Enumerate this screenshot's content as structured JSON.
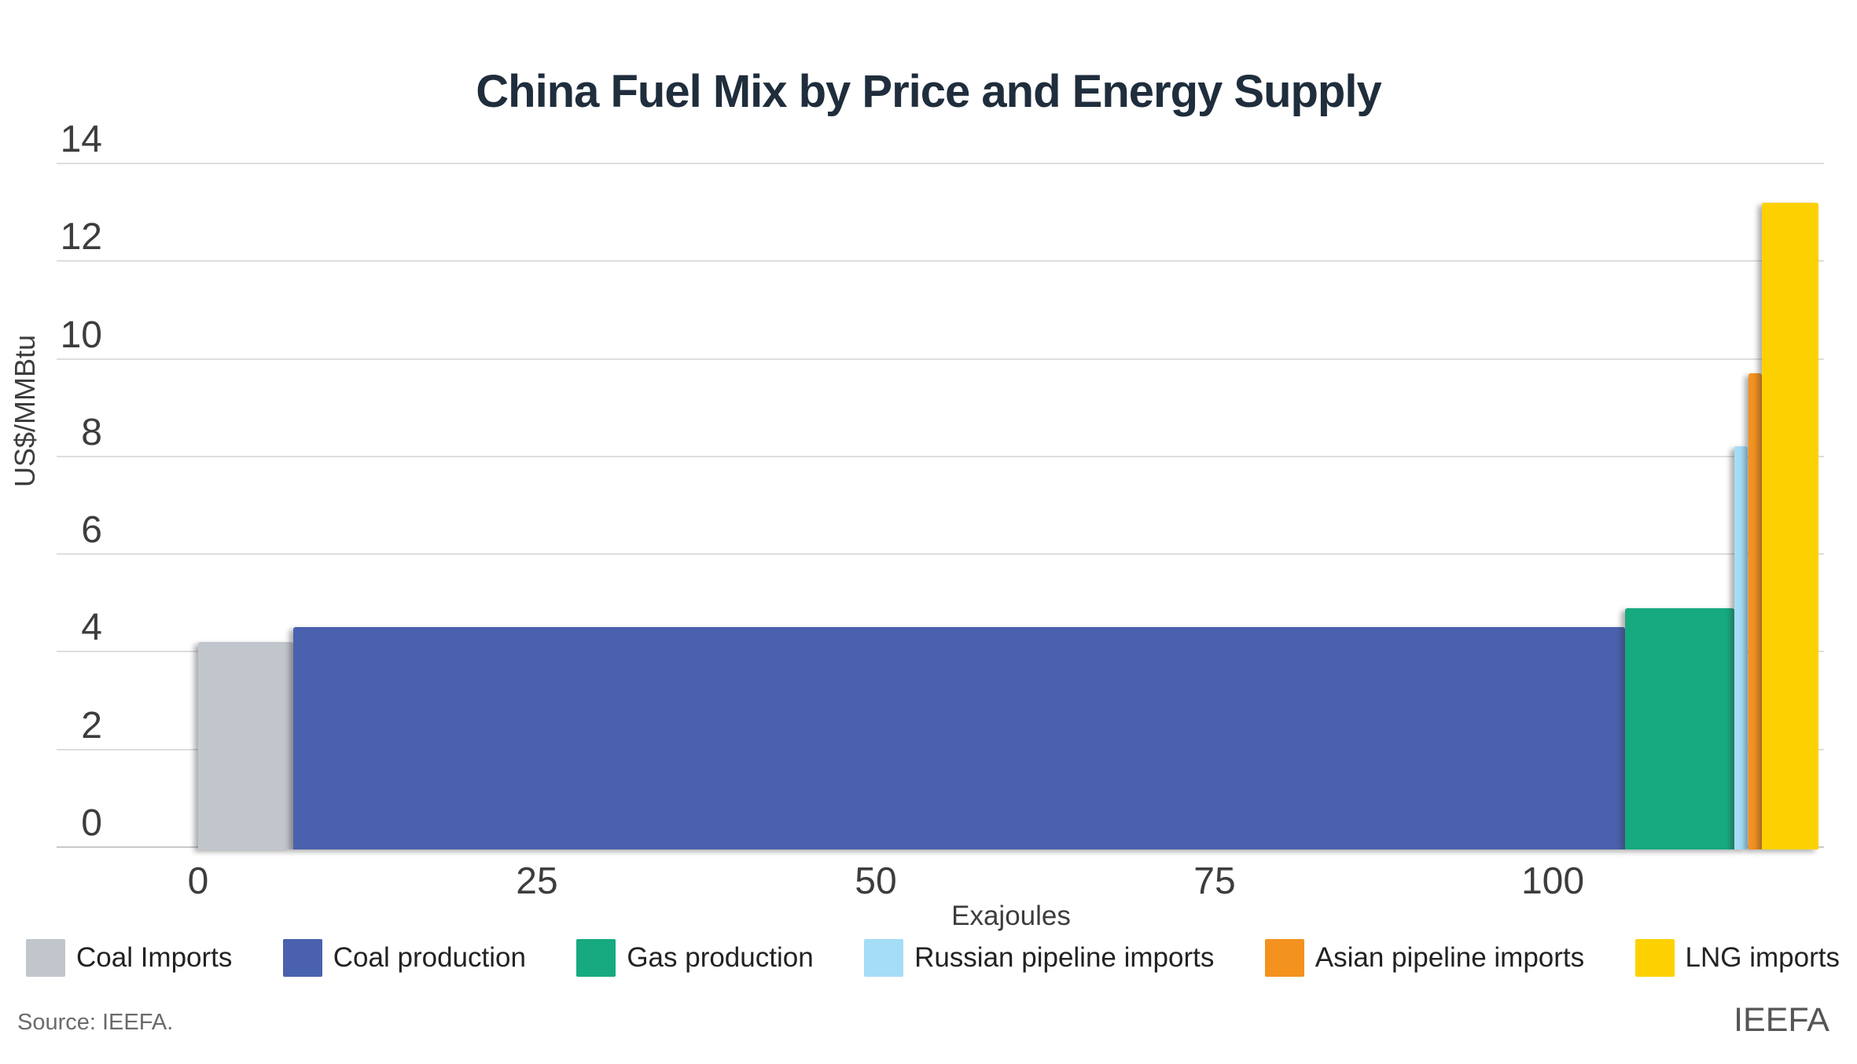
{
  "chart": {
    "title": "China Fuel Mix by Price and Energy Supply",
    "y_axis": {
      "title": "US$/MMBtu",
      "ticks": [
        0,
        2,
        4,
        6,
        8,
        10,
        12,
        14
      ]
    },
    "x_axis": {
      "title": "Exajoules",
      "ticks": [
        0,
        25,
        50,
        75,
        100
      ]
    },
    "source": "Source: IEEFA.",
    "logo": "IEEFA"
  },
  "chart_data": {
    "type": "bar",
    "subtype": "variable-width-marimekko",
    "title": "China Fuel Mix by Price and Energy Supply",
    "xlabel": "Exajoules",
    "ylabel": "US$/MMBtu",
    "xlim": [
      0,
      120
    ],
    "ylim": [
      0,
      14
    ],
    "grid": "horizontal",
    "legend_position": "bottom",
    "series": [
      {
        "name": "Coal Imports",
        "color": "#c1c6cd",
        "x_start_ej": 0,
        "x_end_ej": 7,
        "width_ej": 7,
        "price_usd_mmbtu": 4.2
      },
      {
        "name": "Coal production",
        "color": "#4a61ae",
        "x_start_ej": 7,
        "x_end_ej": 105.3,
        "width_ej": 98.3,
        "price_usd_mmbtu": 4.5
      },
      {
        "name": "Gas production",
        "color": "#17aa80",
        "x_start_ej": 105.3,
        "x_end_ej": 113.4,
        "width_ej": 8.1,
        "price_usd_mmbtu": 4.9
      },
      {
        "name": "Russian pipeline imports",
        "color": "#a5dcf6",
        "x_start_ej": 113.4,
        "x_end_ej": 114.4,
        "width_ej": 1.0,
        "price_usd_mmbtu": 8.2
      },
      {
        "name": "Asian pipeline imports",
        "color": "#f3921f",
        "x_start_ej": 114.4,
        "x_end_ej": 115.4,
        "width_ej": 1.0,
        "price_usd_mmbtu": 9.7
      },
      {
        "name": "LNG imports",
        "color": "#fdd101",
        "x_start_ej": 115.4,
        "x_end_ej": 119.6,
        "width_ej": 4.2,
        "price_usd_mmbtu": 13.2
      }
    ]
  }
}
